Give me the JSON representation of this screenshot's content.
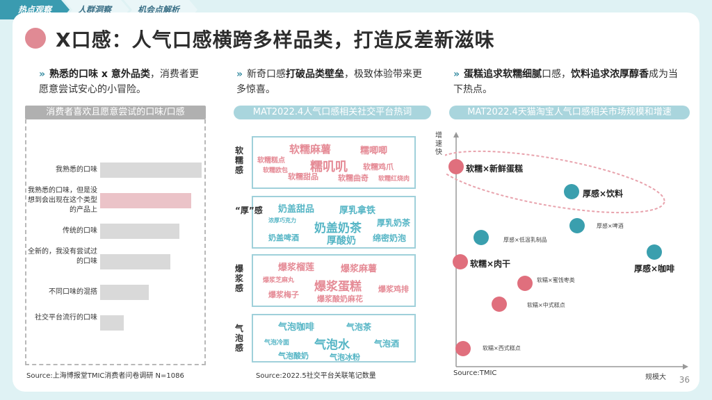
{
  "tabs": [
    "热点观察",
    "人群洞察",
    "机会点解析"
  ],
  "title": "X口感：人气口感横跨多样品类，打造反差新滋味",
  "col1": {
    "head_bold": "熟悉的口味 x 意外品类",
    "head_rest": "，消费者更愿意尝试安心的小冒险。",
    "banner": "消费者喜欢且愿意尝试的口味/口感",
    "source": "Source:上海博报堂TMIC消费者问卷调研 N=1086"
  },
  "col2": {
    "head_pre": "新奇口感",
    "head_bold": "打破品类壁垒",
    "head_rest": "，极致体验带来更多惊喜。",
    "banner": "MAT2022.4人气口感相关社交平台热词",
    "source": "Source:2022.5社交平台关联笔记数量"
  },
  "col3": {
    "head_b1": "蛋糕追求软糯细腻",
    "head_m1": "口感，",
    "head_b2": "饮料追求浓厚醇香",
    "head_rest": "成为当下热点。",
    "banner": "MAT2022.4天猫淘宝人气口感相关市场规模和增速",
    "source": "Source:TMIC"
  },
  "bars": [
    {
      "label": "我熟悉的口味",
      "value": 146
    },
    {
      "label": "我熟悉的口味，但是没想到会出现在这个类型的产品上",
      "value": 131
    },
    {
      "label": "传统的口味",
      "value": 114
    },
    {
      "label": "全新的，我没有尝试过的口味",
      "value": 101
    },
    {
      "label": "不同口味的混搭",
      "value": 70
    },
    {
      "label": "社交平台流行的口味",
      "value": 34
    }
  ],
  "clouds": [
    {
      "side": "软糯感",
      "words": [
        "软糯麻薯",
        "糯唧唧",
        "软糯糕点",
        "糯叽叽",
        "软糯鸡爪",
        "软糯欧包",
        "软糯甜品",
        "软糯曲奇",
        "软糯红烧肉"
      ]
    },
    {
      "side": "“厚”感",
      "words": [
        "奶盖甜品",
        "厚乳拿铁",
        "浓厚巧克力",
        "奶盖奶茶",
        "厚乳奶茶",
        "奶盖啤酒",
        "厚酸奶",
        "绵密奶泡"
      ]
    },
    {
      "side": "爆浆感",
      "words": [
        "爆浆榴莲",
        "爆浆麻薯",
        "爆浆芝麻丸",
        "爆浆蛋糕",
        "爆浆鸡排",
        "爆浆梅子",
        "爆浆酸奶麻花"
      ]
    },
    {
      "side": "气泡感",
      "words": [
        "气泡咖啡",
        "气泡茶",
        "气泡冷面",
        "气泡水",
        "气泡酒",
        "气泡酸奶",
        "气泡冰粉"
      ]
    }
  ],
  "scatter": {
    "ylabel": "增速快",
    "xlabel": "规模大",
    "points": [
      {
        "label": "软糯×新鲜蛋糕",
        "color": "pink",
        "big": true
      },
      {
        "label": "厚感×饮料",
        "color": "teal",
        "big": true
      },
      {
        "label": "厚感×啤酒",
        "color": "teal",
        "big": false
      },
      {
        "label": "厚感×低温乳制品",
        "color": "teal",
        "big": false
      },
      {
        "label": "软糯×肉干",
        "color": "pink",
        "big": true
      },
      {
        "label": "厚感×咖啡",
        "color": "teal",
        "big": true
      },
      {
        "label": "软糯×蜜饯枣类",
        "color": "pink",
        "big": false
      },
      {
        "label": "软糯×中式糕点",
        "color": "pink",
        "big": false
      },
      {
        "label": "软糯×西式糕点",
        "color": "pink",
        "big": false
      }
    ]
  },
  "page": "36"
}
